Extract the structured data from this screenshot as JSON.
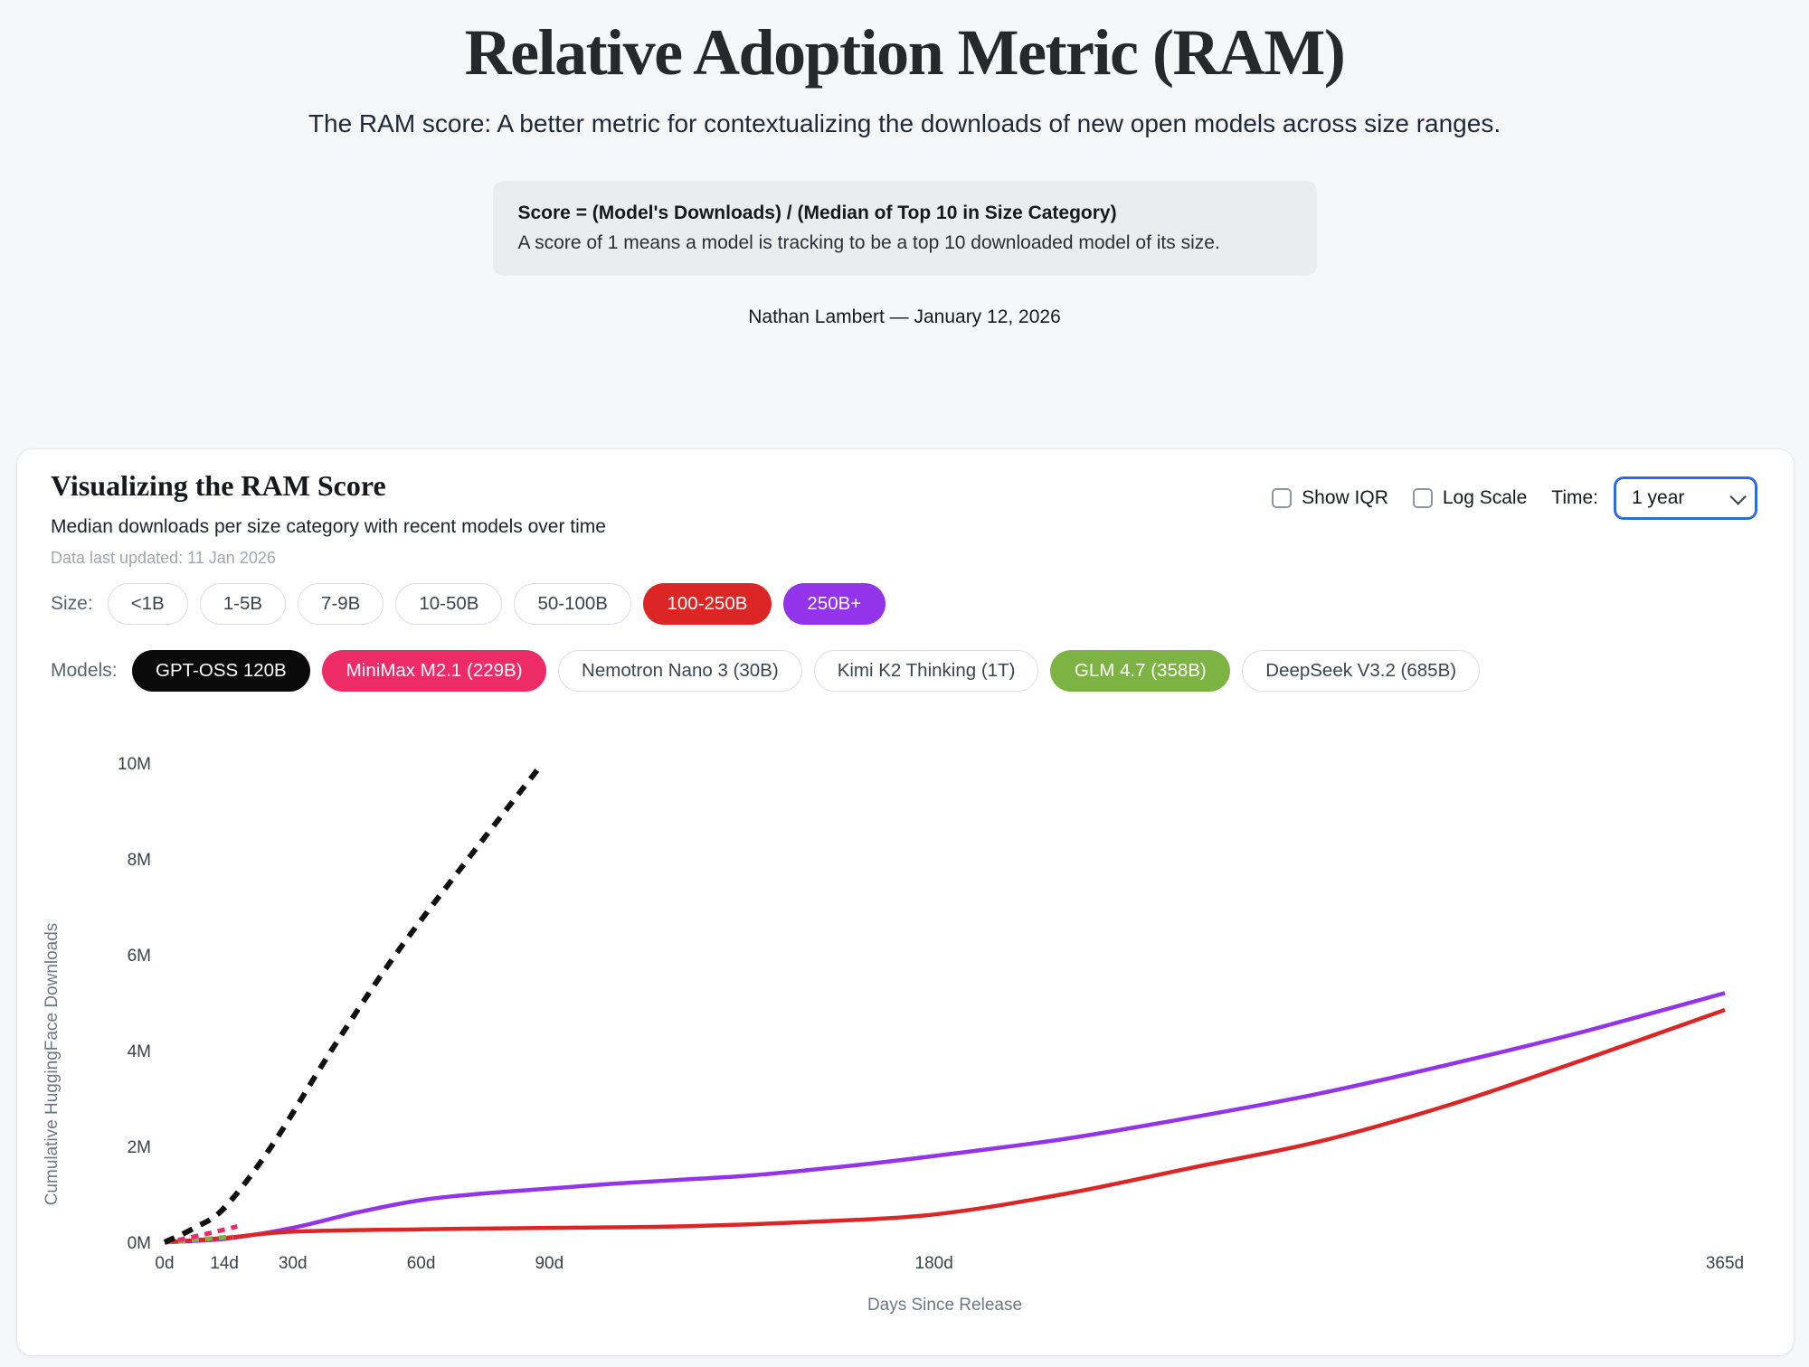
{
  "header": {
    "title": "Relative Adoption Metric (RAM)",
    "subtitle": "The RAM score: A better metric for contextualizing the downloads of new open models across size ranges.",
    "formula_line1": "Score = (Model's Downloads) / (Median of Top 10 in Size Category)",
    "formula_line2": "A score of 1 means a model is tracking to be a top 10 downloaded model of its size.",
    "byline": "Nathan Lambert — January 12, 2026"
  },
  "card": {
    "title": "Visualizing the RAM Score",
    "subtitle": "Median downloads per size category with recent models over time",
    "updated": "Data last updated: 11 Jan 2026",
    "controls": {
      "show_iqr_label": "Show IQR",
      "show_iqr_checked": false,
      "log_scale_label": "Log Scale",
      "log_scale_checked": false,
      "time_label": "Time:",
      "time_value": "1 year"
    },
    "size_label": "Size:",
    "size_pills": [
      {
        "label": "<1B",
        "selected": false
      },
      {
        "label": "1-5B",
        "selected": false
      },
      {
        "label": "7-9B",
        "selected": false
      },
      {
        "label": "10-50B",
        "selected": false
      },
      {
        "label": "50-100B",
        "selected": false
      },
      {
        "label": "100-250B",
        "selected": true,
        "color": "#dc2626"
      },
      {
        "label": "250B+",
        "selected": true,
        "color": "#9333ea"
      }
    ],
    "models_label": "Models:",
    "model_pills": [
      {
        "label": "GPT-OSS 120B",
        "selected": true,
        "color": "#0a0a0a"
      },
      {
        "label": "MiniMax M2.1 (229B)",
        "selected": true,
        "color": "#ed2b67"
      },
      {
        "label": "Nemotron Nano 3 (30B)",
        "selected": false
      },
      {
        "label": "Kimi K2 Thinking (1T)",
        "selected": false
      },
      {
        "label": "GLM 4.7 (358B)",
        "selected": true,
        "color": "#7cb342"
      },
      {
        "label": "DeepSeek V3.2 (685B)",
        "selected": false
      }
    ]
  },
  "chart_data": {
    "type": "line",
    "xlabel": "Days Since Release",
    "ylabel": "Cumulative HuggingFace Downloads",
    "unit": "millions of downloads",
    "xlim_days": [
      0,
      365
    ],
    "ylim_millions": [
      0,
      10
    ],
    "grid": false,
    "legend_position": "none",
    "x_ticks": [
      {
        "value": 0,
        "label": "0d"
      },
      {
        "value": 14,
        "label": "14d"
      },
      {
        "value": 30,
        "label": "30d"
      },
      {
        "value": 60,
        "label": "60d"
      },
      {
        "value": 90,
        "label": "90d"
      },
      {
        "value": 180,
        "label": "180d"
      },
      {
        "value": 365,
        "label": "365d"
      }
    ],
    "y_ticks": [
      {
        "value": 0,
        "label": "0M"
      },
      {
        "value": 2,
        "label": "2M"
      },
      {
        "value": 4,
        "label": "4M"
      },
      {
        "value": 6,
        "label": "6M"
      },
      {
        "value": 8,
        "label": "8M"
      },
      {
        "value": 10,
        "label": "10M"
      }
    ],
    "series": [
      {
        "name": "250B+ median",
        "color": "#9333ea",
        "style": "solid",
        "points_day_millions": [
          [
            0,
            0
          ],
          [
            14,
            0.07
          ],
          [
            30,
            0.3
          ],
          [
            45,
            0.62
          ],
          [
            60,
            0.88
          ],
          [
            75,
            1.02
          ],
          [
            90,
            1.12
          ],
          [
            105,
            1.22
          ],
          [
            120,
            1.3
          ],
          [
            135,
            1.38
          ],
          [
            150,
            1.5
          ],
          [
            165,
            1.64
          ],
          [
            180,
            1.8
          ],
          [
            210,
            2.15
          ],
          [
            240,
            2.6
          ],
          [
            270,
            3.1
          ],
          [
            300,
            3.7
          ],
          [
            330,
            4.35
          ],
          [
            365,
            5.2
          ]
        ]
      },
      {
        "name": "100-250B median",
        "color": "#dc2626",
        "style": "solid",
        "points_day_millions": [
          [
            0,
            0
          ],
          [
            14,
            0.09
          ],
          [
            30,
            0.22
          ],
          [
            60,
            0.27
          ],
          [
            90,
            0.3
          ],
          [
            120,
            0.33
          ],
          [
            150,
            0.42
          ],
          [
            180,
            0.58
          ],
          [
            210,
            1.0
          ],
          [
            240,
            1.55
          ],
          [
            270,
            2.1
          ],
          [
            300,
            2.85
          ],
          [
            330,
            3.75
          ],
          [
            365,
            4.85
          ]
        ]
      },
      {
        "name": "GLM 4.7 (358B)",
        "color": "#7cb342",
        "style": "dashed",
        "points_day_millions": [
          [
            0,
            0
          ],
          [
            5,
            0.03
          ],
          [
            10,
            0.07
          ],
          [
            16,
            0.12
          ]
        ]
      },
      {
        "name": "MiniMax M2.1 (229B)",
        "color": "#ed2b67",
        "style": "dashed",
        "points_day_millions": [
          [
            0,
            0
          ],
          [
            4,
            0.06
          ],
          [
            8,
            0.14
          ],
          [
            12,
            0.22
          ],
          [
            17,
            0.33
          ]
        ]
      },
      {
        "name": "GPT-OSS 120B",
        "color": "#111111",
        "style": "dashed",
        "points_day_millions": [
          [
            0,
            0
          ],
          [
            7,
            0.3
          ],
          [
            14,
            0.72
          ],
          [
            25,
            2.0
          ],
          [
            39,
            4.0
          ],
          [
            54,
            6.0
          ],
          [
            71,
            8.0
          ],
          [
            88,
            9.95
          ]
        ]
      }
    ]
  }
}
